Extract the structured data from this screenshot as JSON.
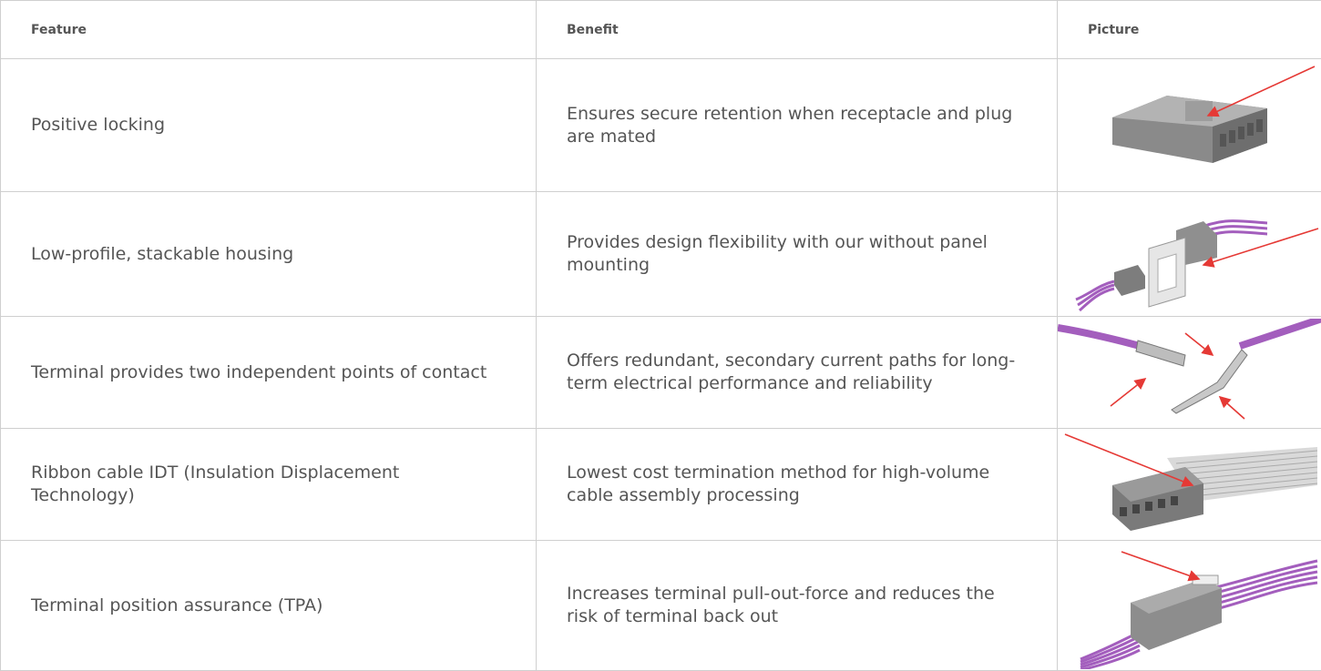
{
  "table": {
    "header": [
      "Feature",
      "Benefit",
      "Picture"
    ],
    "rows": [
      [
        "Positive locking",
        "Ensures secure retention when receptacle and plug are mated"
      ],
      [
        "Low-profile, stackable housing",
        "Provides design flexibility with our without panel mounting"
      ],
      [
        "Terminal provides two independent points of contact",
        "Offers redundant, secondary current paths for long-term electrical performance and reliability"
      ],
      [
        "Ribbon cable IDT (Insulation Displacement Technology)",
        "Lowest cost termination method for high-volume cable assembly processing"
      ],
      [
        "Terminal position assurance (TPA)",
        "Increases terminal pull-out-force and reduces the risk of terminal back out"
      ]
    ]
  }
}
